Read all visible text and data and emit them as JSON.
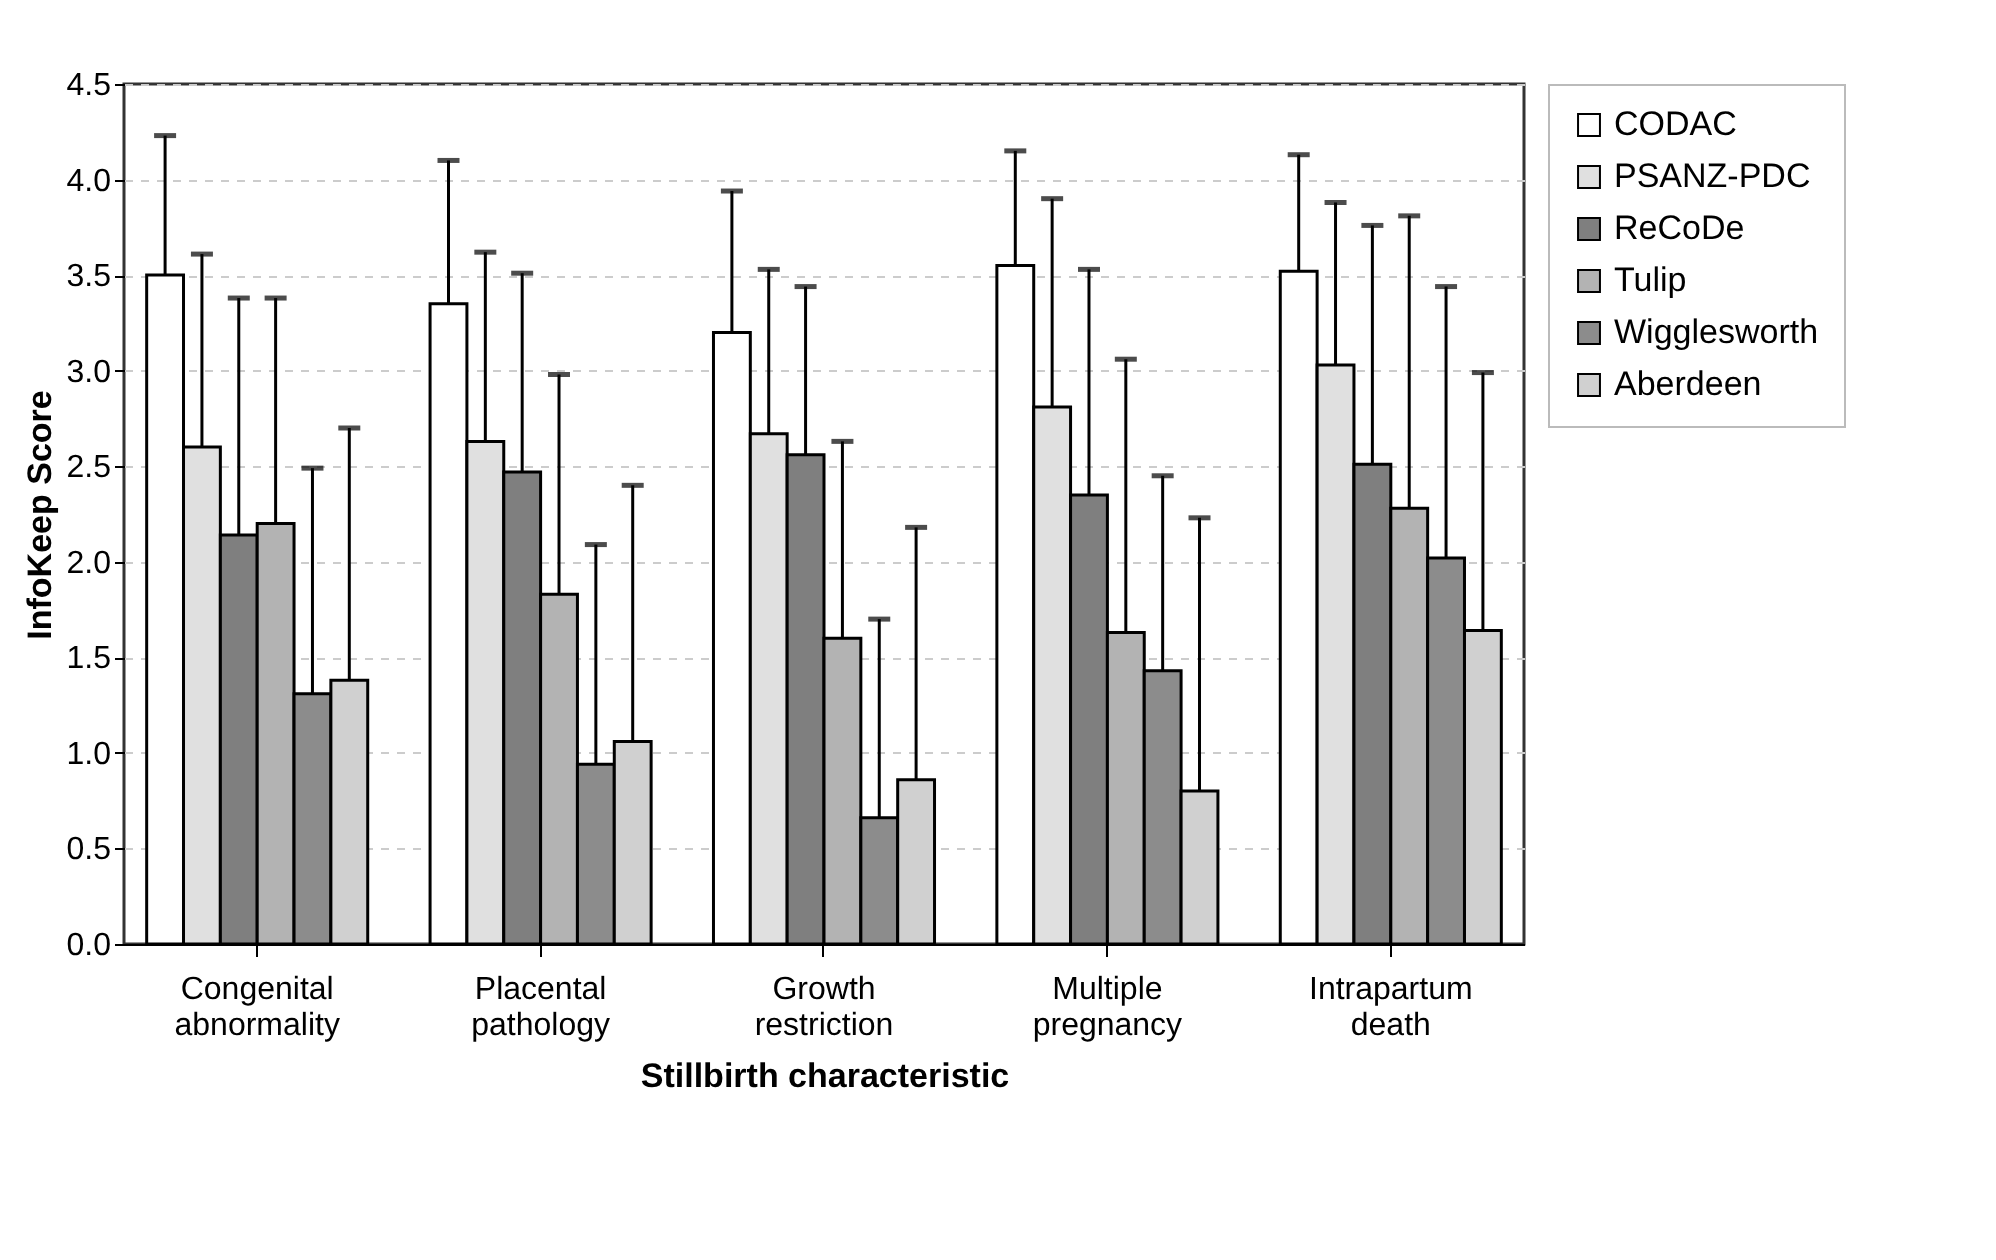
{
  "chart_data": {
    "type": "bar",
    "xlabel": "Stillbirth characteristic",
    "ylabel": "InfoKeep Score",
    "categories": [
      "Congenital abnormality",
      "Placental pathology",
      "Growth restriction",
      "Multiple pregnancy",
      "Intrapartum death"
    ],
    "series": [
      {
        "name": "CODAC",
        "color": "#ffffff",
        "values": [
          3.5,
          3.35,
          3.2,
          3.55,
          3.52
        ],
        "errors": [
          [
            3.5,
            4.23
          ],
          [
            3.35,
            4.1
          ],
          [
            3.2,
            3.94
          ],
          [
            3.55,
            4.15
          ],
          [
            3.52,
            4.13
          ]
        ]
      },
      {
        "name": "PSANZ-PDC",
        "color": "#e0e0e0",
        "values": [
          2.6,
          2.63,
          2.67,
          2.81,
          3.03
        ],
        "errors": [
          [
            2.6,
            3.61
          ],
          [
            2.63,
            3.62
          ],
          [
            2.67,
            3.53
          ],
          [
            2.81,
            3.9
          ],
          [
            3.03,
            3.88
          ]
        ]
      },
      {
        "name": "ReCoDe",
        "color": "#7f7f7f",
        "values": [
          2.14,
          2.47,
          2.56,
          2.35,
          2.51
        ],
        "errors": [
          [
            2.14,
            3.38
          ],
          [
            2.47,
            3.51
          ],
          [
            2.56,
            3.44
          ],
          [
            2.35,
            3.53
          ],
          [
            2.51,
            3.76
          ]
        ]
      },
      {
        "name": "Tulip",
        "color": "#b3b3b3",
        "values": [
          2.2,
          1.83,
          1.6,
          1.63,
          2.28
        ],
        "errors": [
          [
            2.2,
            3.38
          ],
          [
            1.83,
            2.98
          ],
          [
            1.6,
            2.63
          ],
          [
            1.63,
            3.06
          ],
          [
            2.28,
            3.81
          ]
        ]
      },
      {
        "name": "Wigglesworth",
        "color": "#8c8c8c",
        "values": [
          1.31,
          0.94,
          0.66,
          1.43,
          2.02
        ],
        "errors": [
          [
            1.31,
            2.49
          ],
          [
            0.94,
            2.09
          ],
          [
            0.66,
            1.7
          ],
          [
            1.43,
            2.45
          ],
          [
            2.02,
            3.44
          ]
        ]
      },
      {
        "name": "Aberdeen",
        "color": "#d0d0d0",
        "values": [
          1.38,
          1.06,
          0.86,
          0.8,
          1.64
        ],
        "errors": [
          [
            1.38,
            2.7
          ],
          [
            1.06,
            2.4
          ],
          [
            0.86,
            2.18
          ],
          [
            0.8,
            2.23
          ],
          [
            1.64,
            2.99
          ]
        ]
      }
    ],
    "ylim": [
      0,
      4.5
    ],
    "yticks": [
      {
        "value": 0,
        "label": "0.0"
      },
      0.5,
      {
        "value": 1,
        "label": "1.0"
      },
      1.5,
      {
        "value": 2,
        "label": "2.0"
      },
      2.5,
      {
        "value": 3,
        "label": "3.0"
      },
      3.5,
      {
        "value": 4,
        "label": "4.0"
      },
      4.5
    ],
    "grid": "y",
    "legend": "right"
  }
}
